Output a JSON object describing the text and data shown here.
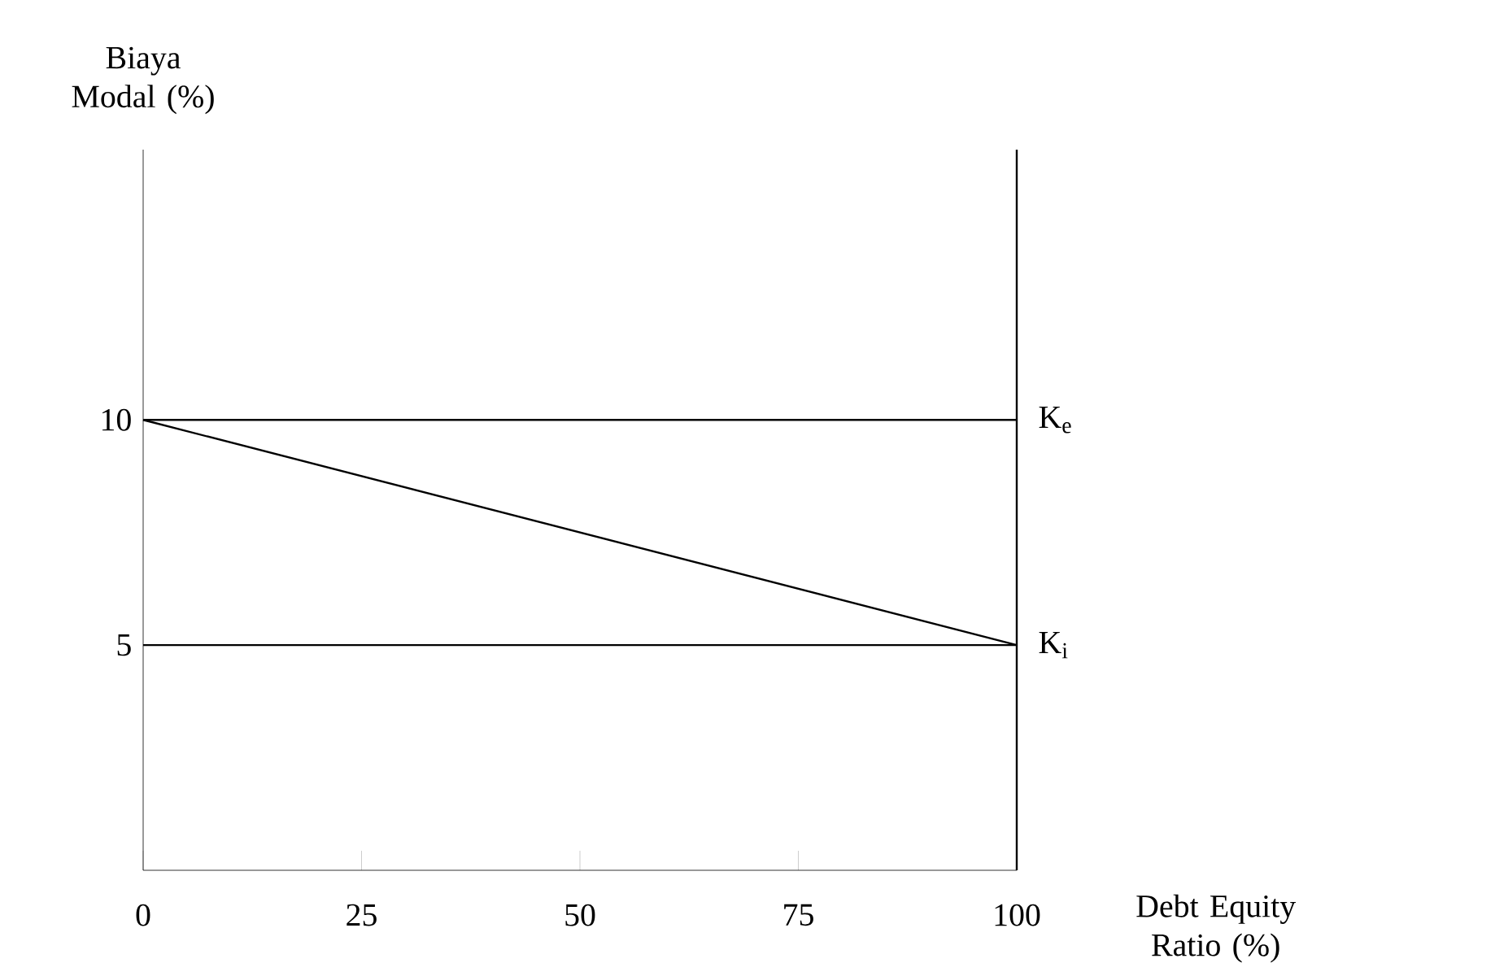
{
  "chart_data": {
    "type": "line",
    "ylabel": "Biaya Modal (%)",
    "xlabel": "Debt Equity Ratio (%)",
    "x": [
      0,
      100
    ],
    "xlim": [
      0,
      100
    ],
    "ylim": [
      0,
      16
    ],
    "xticks": [
      0,
      25,
      50,
      75,
      100
    ],
    "yticks": [
      5,
      10
    ],
    "series": [
      {
        "name": "K$_{e}$",
        "color": "#000000",
        "values": [
          10,
          10
        ]
      },
      {
        "color": "#000000",
        "values": [
          10,
          5
        ]
      },
      {
        "name": "K$_{i}$",
        "color": "#000000",
        "values": [
          5,
          5
        ]
      }
    ],
    "ref_lines": [
      {
        "axis": "x",
        "value": 100,
        "color": "#000000"
      }
    ],
    "marker": "none",
    "line_style": "solid",
    "grid": false
  }
}
